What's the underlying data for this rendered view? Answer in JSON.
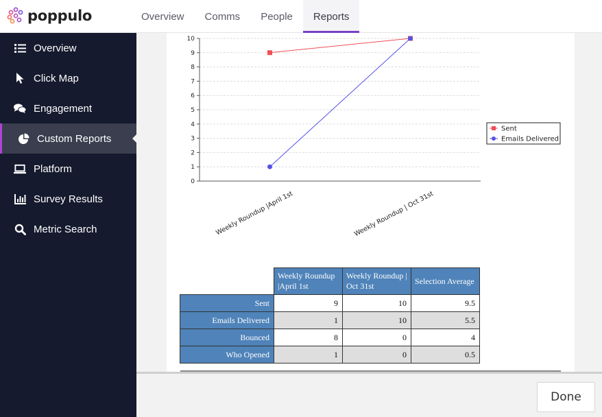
{
  "app": {
    "logo_text": "poppulo"
  },
  "header": {
    "tabs": [
      {
        "label": "Overview"
      },
      {
        "label": "Comms"
      },
      {
        "label": "People"
      },
      {
        "label": "Reports"
      }
    ],
    "active_tab": "Reports"
  },
  "sidebar": {
    "items": [
      {
        "label": "Overview",
        "icon": "list-icon"
      },
      {
        "label": "Click Map",
        "icon": "cursor-icon"
      },
      {
        "label": "Engagement",
        "icon": "chat-bubbles-icon"
      },
      {
        "label": "Custom Reports",
        "icon": "pie-chart-icon"
      },
      {
        "label": "Platform",
        "icon": "laptop-icon"
      },
      {
        "label": "Survey Results",
        "icon": "bar-chart-icon"
      },
      {
        "label": "Metric Search",
        "icon": "search-icon"
      }
    ],
    "active_item": "Custom Reports"
  },
  "chart_data": {
    "type": "line",
    "categories": [
      "Weekly Roundup |April 1st",
      "Weekly Roundup | Oct 31st"
    ],
    "series": [
      {
        "name": "Sent",
        "values": [
          9,
          10
        ],
        "color": "#ef4e55",
        "marker": "square"
      },
      {
        "name": "Emails Delivered",
        "values": [
          1,
          10
        ],
        "color": "#5551e6",
        "marker": "circle"
      }
    ],
    "ylim": [
      0,
      10
    ],
    "yticks": [
      "0",
      "1",
      "2",
      "3",
      "4",
      "5",
      "6",
      "7",
      "8",
      "9",
      "10"
    ],
    "grid": true,
    "legend": "right"
  },
  "table": {
    "columns": [
      "Weekly Roundup |April 1st",
      "Weekly Roundup | Oct 31st",
      "Selection Average"
    ],
    "rows": [
      {
        "label": "Sent",
        "values": [
          "9",
          "10",
          "9.5"
        ]
      },
      {
        "label": "Emails Delivered",
        "values": [
          "1",
          "10",
          "5.5"
        ]
      },
      {
        "label": "Bounced",
        "values": [
          "8",
          "0",
          "4"
        ]
      },
      {
        "label": "Who Opened",
        "values": [
          "1",
          "0",
          "0.5"
        ]
      }
    ]
  },
  "footer": {
    "done_label": "Done"
  }
}
